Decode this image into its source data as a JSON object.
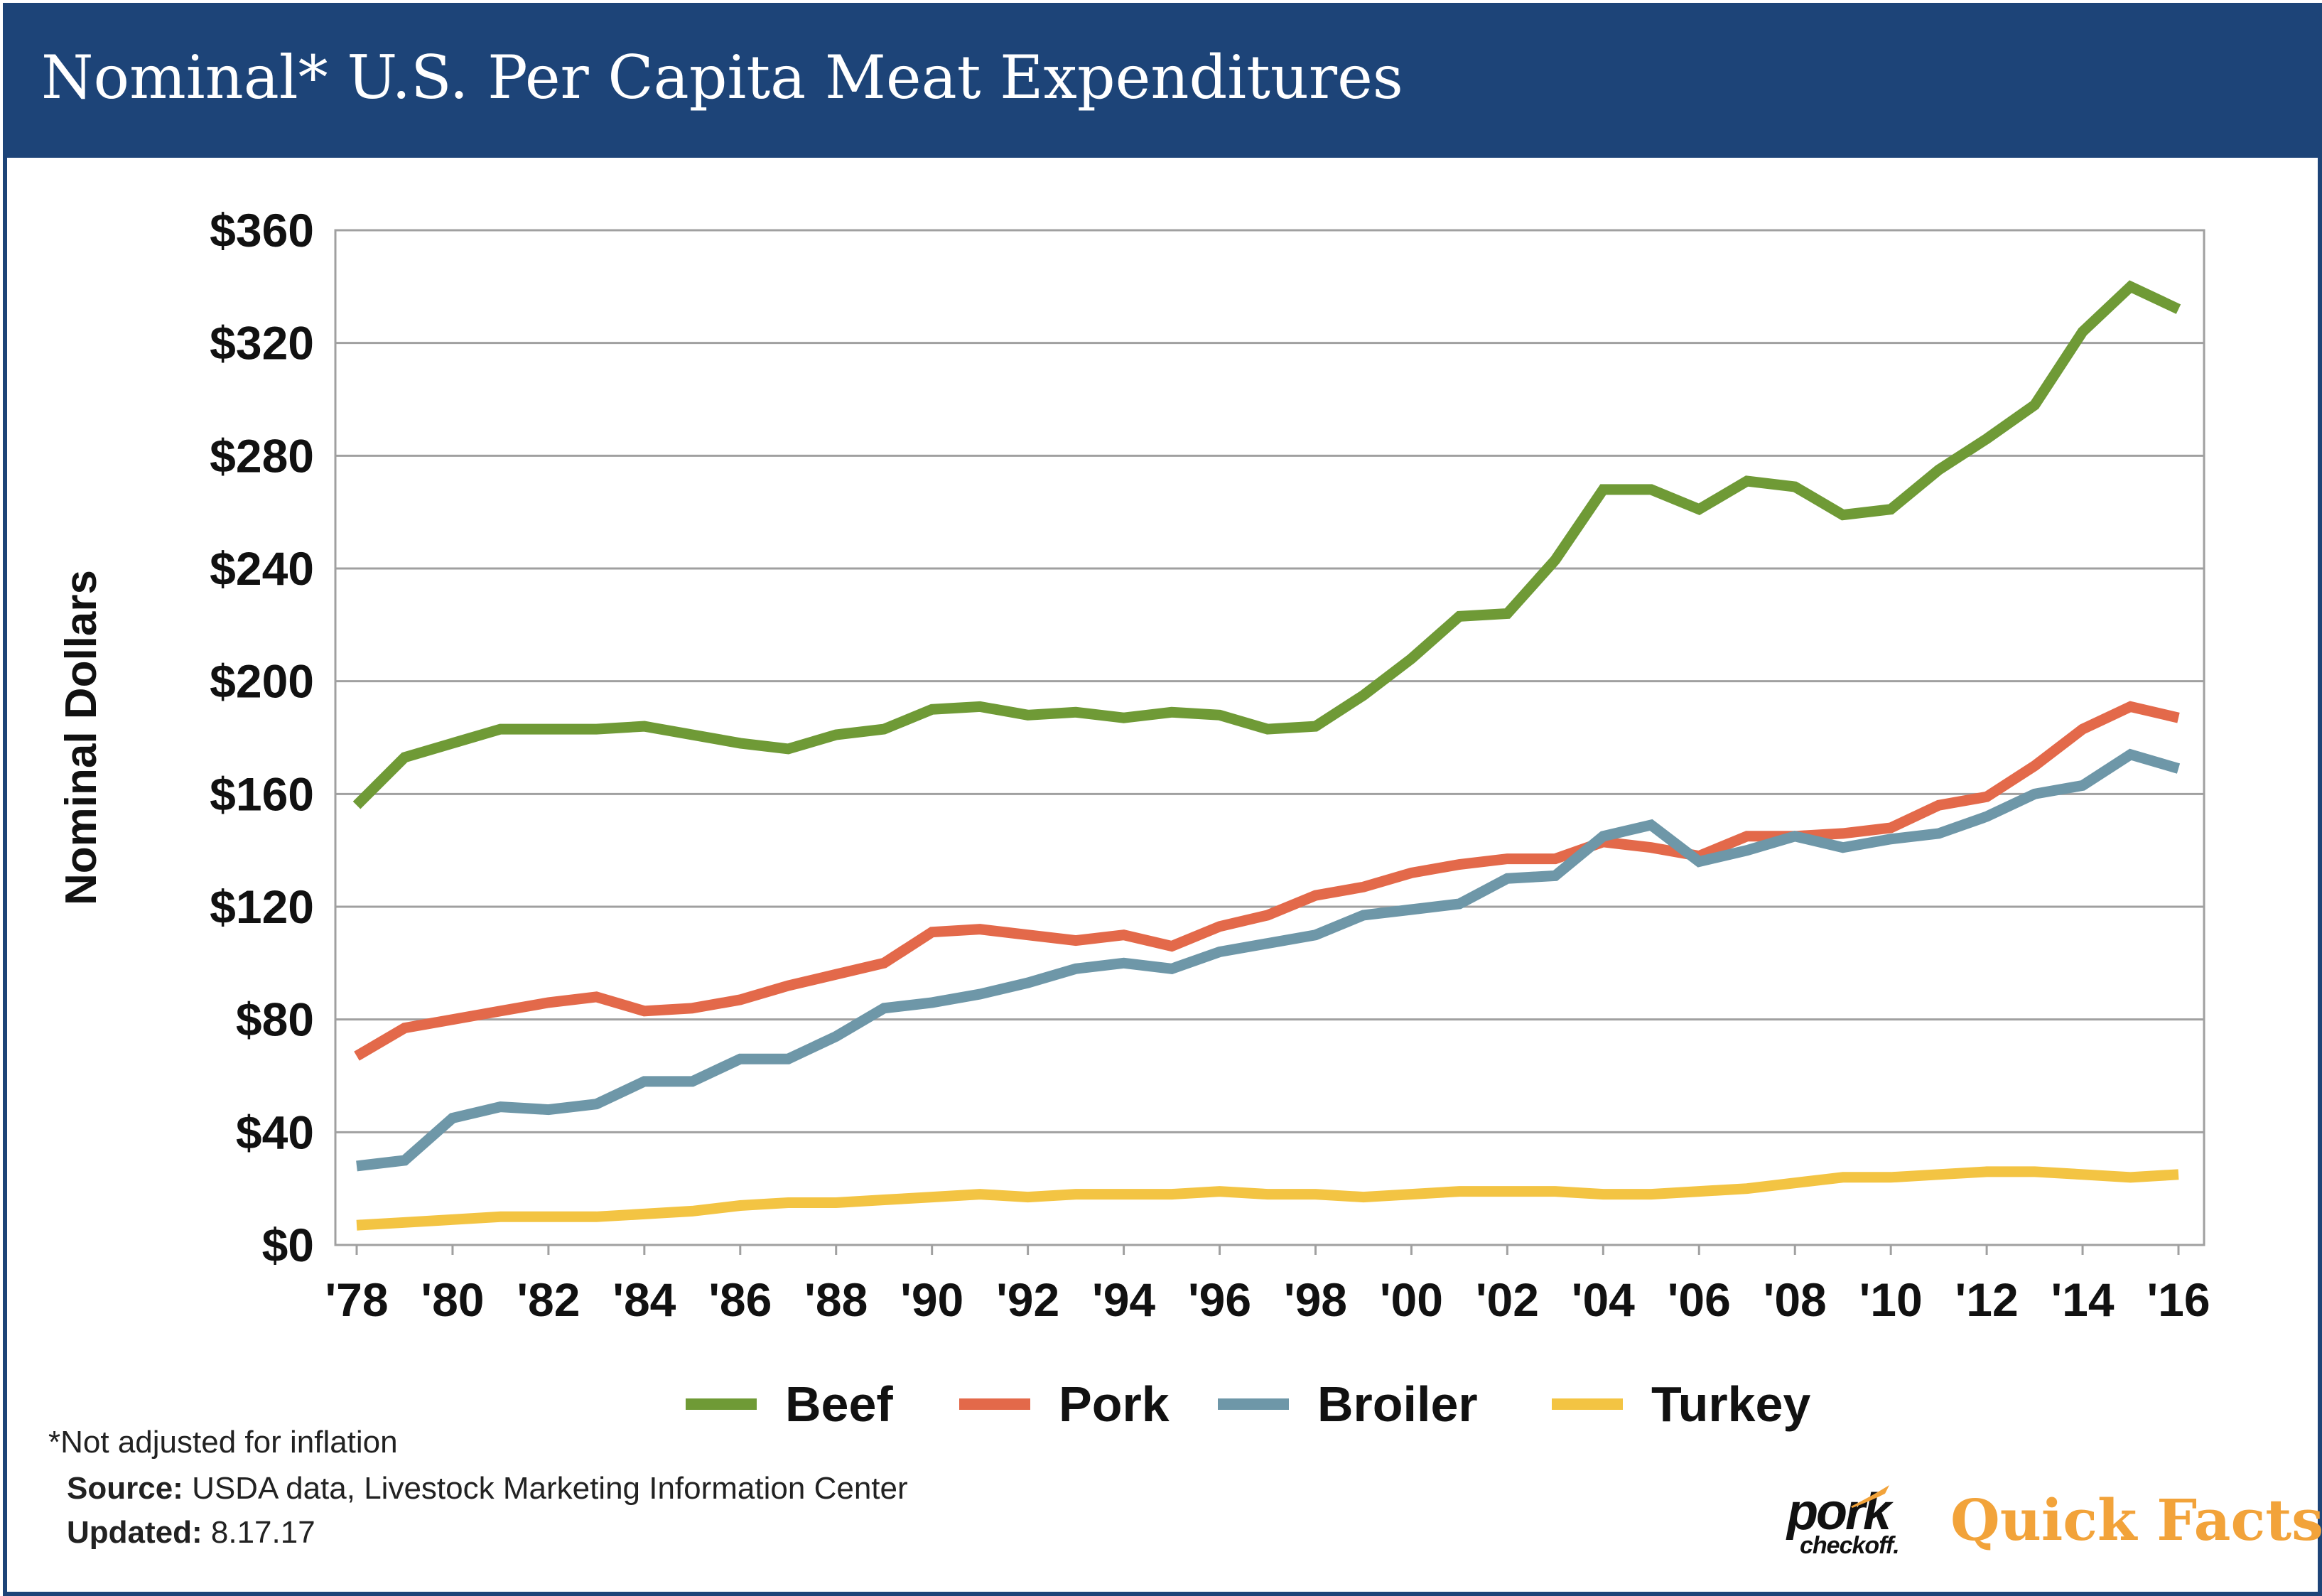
{
  "title": "Nominal* U.S. Per Capita Meat Expenditures",
  "footnote": "*Not adjusted for inflation",
  "source": {
    "label": "Source:",
    "text": "USDA data, Livestock Marketing Information Center"
  },
  "updated": {
    "label": "Updated:",
    "text": "8.17.17"
  },
  "brand": {
    "logo_word": "pork",
    "logo_sub": "checkoff.",
    "tagline": "Quick Facts"
  },
  "colors": {
    "header": "#1d4478",
    "beef": "#6f9a36",
    "pork": "#e3694a",
    "broiler": "#6e97a8",
    "turkey": "#f3c443",
    "grid": "#a0a0a0",
    "tagline": "#f2a33a"
  },
  "chart_data": {
    "type": "line",
    "title": "Nominal* U.S. Per Capita Meat Expenditures",
    "xlabel": "",
    "ylabel": "Nominal Dollars",
    "ylim": [
      0,
      360
    ],
    "xlim": [
      1978,
      2016
    ],
    "yticks": [
      0,
      40,
      80,
      120,
      160,
      200,
      240,
      280,
      320,
      360
    ],
    "ytick_labels": [
      "$0",
      "$40",
      "$80",
      "$120",
      "$160",
      "$200",
      "$240",
      "$280",
      "$320",
      "$360"
    ],
    "xticks": [
      1978,
      1980,
      1982,
      1984,
      1986,
      1988,
      1990,
      1992,
      1994,
      1996,
      1998,
      2000,
      2002,
      2004,
      2006,
      2008,
      2010,
      2012,
      2014,
      2016
    ],
    "xtick_labels": [
      "'78",
      "'80",
      "'82",
      "'84",
      "'86",
      "'88",
      "'90",
      "'92",
      "'94",
      "'96",
      "'98",
      "'00",
      "'02",
      "'04",
      "'06",
      "'08",
      "'10",
      "'12",
      "'14",
      "'16"
    ],
    "grid": true,
    "legend_position": "bottom",
    "x": [
      1978,
      1979,
      1980,
      1981,
      1982,
      1983,
      1984,
      1985,
      1986,
      1987,
      1988,
      1989,
      1990,
      1991,
      1992,
      1993,
      1994,
      1995,
      1996,
      1997,
      1998,
      1999,
      2000,
      2001,
      2002,
      2003,
      2004,
      2005,
      2006,
      2007,
      2008,
      2009,
      2010,
      2011,
      2012,
      2013,
      2014,
      2015,
      2016
    ],
    "series": [
      {
        "name": "Beef",
        "color": "#6f9a36",
        "values": [
          156,
          173,
          178,
          183,
          183,
          183,
          184,
          181,
          178,
          176,
          181,
          183,
          190,
          191,
          188,
          189,
          187,
          189,
          188,
          183,
          184,
          195,
          208,
          223,
          224,
          243,
          268,
          268,
          261,
          271,
          269,
          259,
          261,
          275,
          286,
          298,
          324,
          340,
          332
        ]
      },
      {
        "name": "Pork",
        "color": "#e3694a",
        "values": [
          67,
          77,
          80,
          83,
          86,
          88,
          83,
          84,
          87,
          92,
          96,
          100,
          111,
          112,
          110,
          108,
          110,
          106,
          113,
          117,
          124,
          127,
          132,
          135,
          137,
          137,
          143,
          141,
          138,
          145,
          145,
          146,
          148,
          156,
          159,
          170,
          183,
          191,
          187
        ]
      },
      {
        "name": "Broiler",
        "color": "#6e97a8",
        "values": [
          28,
          30,
          45,
          49,
          48,
          50,
          58,
          58,
          66,
          66,
          74,
          84,
          86,
          89,
          93,
          98,
          100,
          98,
          104,
          107,
          110,
          117,
          119,
          121,
          130,
          131,
          145,
          149,
          136,
          140,
          145,
          141,
          144,
          146,
          152,
          160,
          163,
          174,
          169
        ]
      },
      {
        "name": "Turkey",
        "color": "#f3c443",
        "values": [
          7,
          8,
          9,
          10,
          10,
          10,
          11,
          12,
          14,
          15,
          15,
          16,
          17,
          18,
          17,
          18,
          18,
          18,
          19,
          18,
          18,
          17,
          18,
          19,
          19,
          19,
          18,
          18,
          19,
          20,
          22,
          24,
          24,
          25,
          26,
          26,
          25,
          24,
          25
        ]
      }
    ]
  }
}
